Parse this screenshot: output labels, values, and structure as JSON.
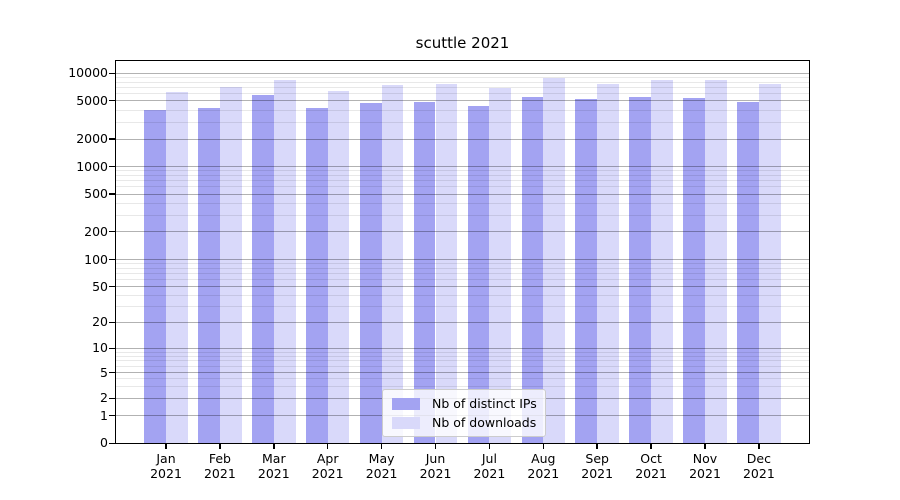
{
  "chart_data": {
    "type": "bar",
    "title": "scuttle 2021",
    "xlabel": "",
    "ylabel": "",
    "categories": [
      "Jan 2021",
      "Feb 2021",
      "Mar 2021",
      "Apr 2021",
      "May 2021",
      "Jun 2021",
      "Jul 2021",
      "Aug 2021",
      "Sep 2021",
      "Oct 2021",
      "Nov 2021",
      "Dec 2021"
    ],
    "series": [
      {
        "name": "Nb of distinct IPs",
        "color": "#a3a3f2",
        "values": [
          4000,
          4200,
          5850,
          4250,
          4700,
          4850,
          4450,
          5500,
          5200,
          5500,
          5300,
          4850
        ]
      },
      {
        "name": "Nb of downloads",
        "color": "#d9d9fa",
        "values": [
          6200,
          7000,
          8450,
          6350,
          7350,
          7550,
          6900,
          8950,
          7700,
          8400,
          8400,
          7550
        ]
      }
    ],
    "yscale": "symlog",
    "ylim": [
      0,
      14000
    ],
    "yticks": [
      0,
      1,
      2,
      5,
      10,
      20,
      50,
      100,
      200,
      500,
      1000,
      2000,
      5000,
      10000
    ],
    "ytick_labels": [
      "0",
      "1",
      "2",
      "5",
      "10",
      "20",
      "50",
      "100",
      "200",
      "500",
      "1000",
      "2000",
      "5000",
      "10000"
    ],
    "grid": "horizontal major and minor, drawn over bars",
    "grid_major_color": "#b3b3b3",
    "grid_minor_color": "#e8e8e8",
    "legend_position": "lower center"
  }
}
